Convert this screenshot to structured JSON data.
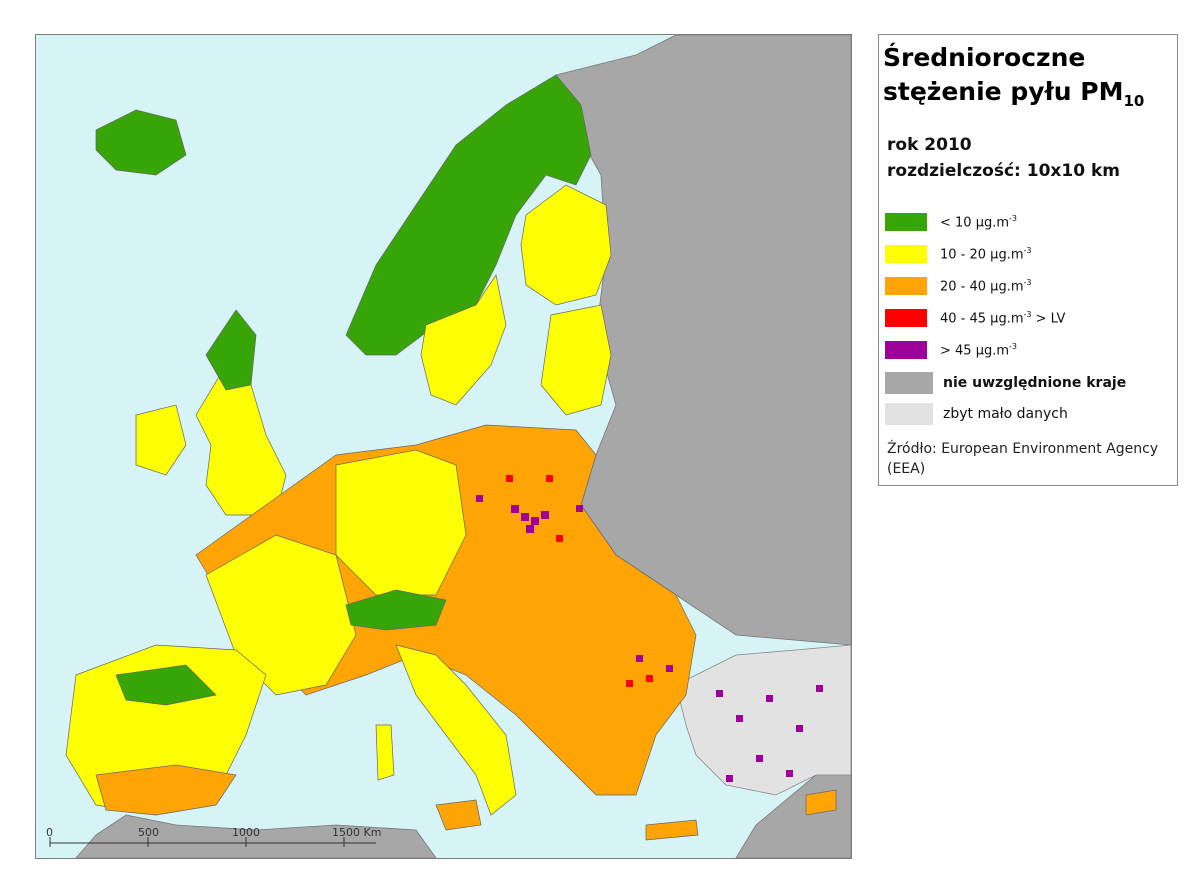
{
  "legend": {
    "title_line1": "Średnioroczne",
    "title_line2": "stężenie pyłu PM",
    "title_sub": "10",
    "year": "rok 2010",
    "resolution": "rozdzielczość: 10x10 km",
    "classes": [
      {
        "label": "< 10  μg.m",
        "exp": "-3",
        "suffix": "",
        "color": "#37a505"
      },
      {
        "label": "10 - 20  μg.m",
        "exp": "-3",
        "suffix": "",
        "color": "#fefe02"
      },
      {
        "label": "20 - 40  μg.m",
        "exp": "-3",
        "suffix": "",
        "color": "#fea405"
      },
      {
        "label": "40 - 45  μg.m",
        "exp": "-3",
        "suffix": " > LV",
        "color": "#ff0000"
      },
      {
        "label": "> 45  μg.m",
        "exp": "-3",
        "suffix": "",
        "color": "#a0009a"
      }
    ],
    "excluded_label": "nie uwzględnione kraje",
    "excluded_color": "#a7a7a7",
    "insufficient_label": "zbyt mało danych",
    "insufficient_color": "#e2e2e2",
    "source": "Źródło: European Environment Agency (EEA)"
  },
  "map": {
    "sea_color": "#d6f3f6",
    "scale_labels": [
      "0",
      "500",
      "1000",
      "1500 Km"
    ]
  }
}
